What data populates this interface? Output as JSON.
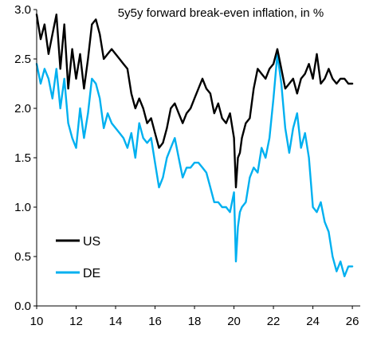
{
  "chart_data": {
    "type": "line",
    "title": "5y5y forward break-even inflation, in %",
    "xlabel": "",
    "ylabel": "",
    "x_tick_labels": [
      "10",
      "12",
      "14",
      "16",
      "18",
      "20",
      "22",
      "24",
      "26"
    ],
    "y_tick_labels": [
      "0.0",
      "0.5",
      "1.0",
      "1.5",
      "2.0",
      "2.5",
      "3.0"
    ],
    "xlim": [
      2010,
      2026.4
    ],
    "ylim": [
      0,
      3
    ],
    "grid": false,
    "legend_position": "bottom-left",
    "series": [
      {
        "name": "US",
        "color": "#000000",
        "x": [
          2010.0,
          2010.2,
          2010.4,
          2010.6,
          2010.8,
          2011.0,
          2011.2,
          2011.4,
          2011.6,
          2011.8,
          2012.0,
          2012.2,
          2012.4,
          2012.6,
          2012.8,
          2013.0,
          2013.2,
          2013.4,
          2013.6,
          2013.8,
          2014.0,
          2014.2,
          2014.4,
          2014.6,
          2014.8,
          2015.0,
          2015.2,
          2015.4,
          2015.6,
          2015.8,
          2016.0,
          2016.2,
          2016.4,
          2016.6,
          2016.8,
          2017.0,
          2017.2,
          2017.4,
          2017.6,
          2017.8,
          2018.0,
          2018.2,
          2018.4,
          2018.6,
          2018.8,
          2019.0,
          2019.2,
          2019.4,
          2019.6,
          2019.8,
          2020.0,
          2020.1,
          2020.2,
          2020.3,
          2020.4,
          2020.6,
          2020.8,
          2021.0,
          2021.2,
          2021.4,
          2021.6,
          2021.8,
          2022.0,
          2022.2,
          2022.4,
          2022.6,
          2022.8,
          2023.0,
          2023.2,
          2023.4,
          2023.6,
          2023.8,
          2024.0,
          2024.2,
          2024.4,
          2024.6,
          2024.8,
          2025.0,
          2025.2,
          2025.4,
          2025.6,
          2025.8,
          2026.0
        ],
        "values": [
          2.95,
          2.7,
          2.85,
          2.55,
          2.75,
          2.95,
          2.4,
          2.85,
          2.2,
          2.6,
          2.3,
          2.55,
          2.2,
          2.5,
          2.85,
          2.9,
          2.75,
          2.5,
          2.55,
          2.6,
          2.55,
          2.5,
          2.45,
          2.4,
          2.15,
          2.0,
          2.1,
          2.0,
          1.85,
          1.9,
          1.75,
          1.6,
          1.65,
          1.8,
          2.0,
          2.05,
          1.95,
          1.85,
          1.95,
          2.0,
          2.1,
          2.2,
          2.3,
          2.2,
          2.15,
          1.95,
          2.05,
          1.9,
          1.85,
          1.95,
          1.7,
          1.2,
          1.5,
          1.55,
          1.7,
          1.85,
          1.9,
          2.2,
          2.4,
          2.35,
          2.3,
          2.4,
          2.45,
          2.6,
          2.4,
          2.2,
          2.25,
          2.3,
          2.15,
          2.3,
          2.35,
          2.45,
          2.3,
          2.55,
          2.25,
          2.3,
          2.4,
          2.3,
          2.25,
          2.3,
          2.3,
          2.25,
          2.25
        ]
      },
      {
        "name": "DE",
        "color": "#00b0f0",
        "x": [
          2010.0,
          2010.2,
          2010.4,
          2010.6,
          2010.8,
          2011.0,
          2011.2,
          2011.4,
          2011.6,
          2011.8,
          2012.0,
          2012.2,
          2012.4,
          2012.6,
          2012.8,
          2013.0,
          2013.2,
          2013.4,
          2013.6,
          2013.8,
          2014.0,
          2014.2,
          2014.4,
          2014.6,
          2014.8,
          2015.0,
          2015.2,
          2015.4,
          2015.6,
          2015.8,
          2016.0,
          2016.2,
          2016.4,
          2016.6,
          2016.8,
          2017.0,
          2017.2,
          2017.4,
          2017.6,
          2017.8,
          2018.0,
          2018.2,
          2018.4,
          2018.6,
          2018.8,
          2019.0,
          2019.2,
          2019.4,
          2019.6,
          2019.8,
          2020.0,
          2020.1,
          2020.2,
          2020.3,
          2020.4,
          2020.6,
          2020.8,
          2021.0,
          2021.2,
          2021.4,
          2021.6,
          2021.8,
          2022.0,
          2022.2,
          2022.4,
          2022.6,
          2022.8,
          2023.0,
          2023.2,
          2023.4,
          2023.6,
          2023.8,
          2024.0,
          2024.2,
          2024.4,
          2024.6,
          2024.8,
          2025.0,
          2025.2,
          2025.4,
          2025.6,
          2025.8,
          2026.0
        ],
        "values": [
          2.45,
          2.25,
          2.4,
          2.3,
          2.1,
          2.4,
          2.0,
          2.3,
          1.85,
          1.7,
          1.6,
          2.0,
          1.7,
          1.95,
          2.3,
          2.25,
          2.1,
          1.8,
          1.95,
          1.85,
          1.8,
          1.75,
          1.7,
          1.6,
          1.75,
          1.5,
          1.85,
          1.7,
          1.65,
          1.7,
          1.45,
          1.2,
          1.3,
          1.5,
          1.6,
          1.7,
          1.5,
          1.3,
          1.4,
          1.4,
          1.45,
          1.45,
          1.4,
          1.35,
          1.2,
          1.05,
          1.05,
          1.0,
          1.0,
          0.95,
          1.15,
          0.45,
          0.8,
          0.95,
          1.0,
          1.05,
          1.3,
          1.4,
          1.35,
          1.6,
          1.5,
          1.7,
          2.1,
          2.55,
          2.25,
          1.8,
          1.55,
          1.8,
          1.95,
          1.6,
          1.75,
          1.5,
          1.0,
          0.95,
          1.05,
          0.85,
          0.75,
          0.5,
          0.35,
          0.45,
          0.3,
          0.4,
          0.4
        ]
      }
    ]
  }
}
